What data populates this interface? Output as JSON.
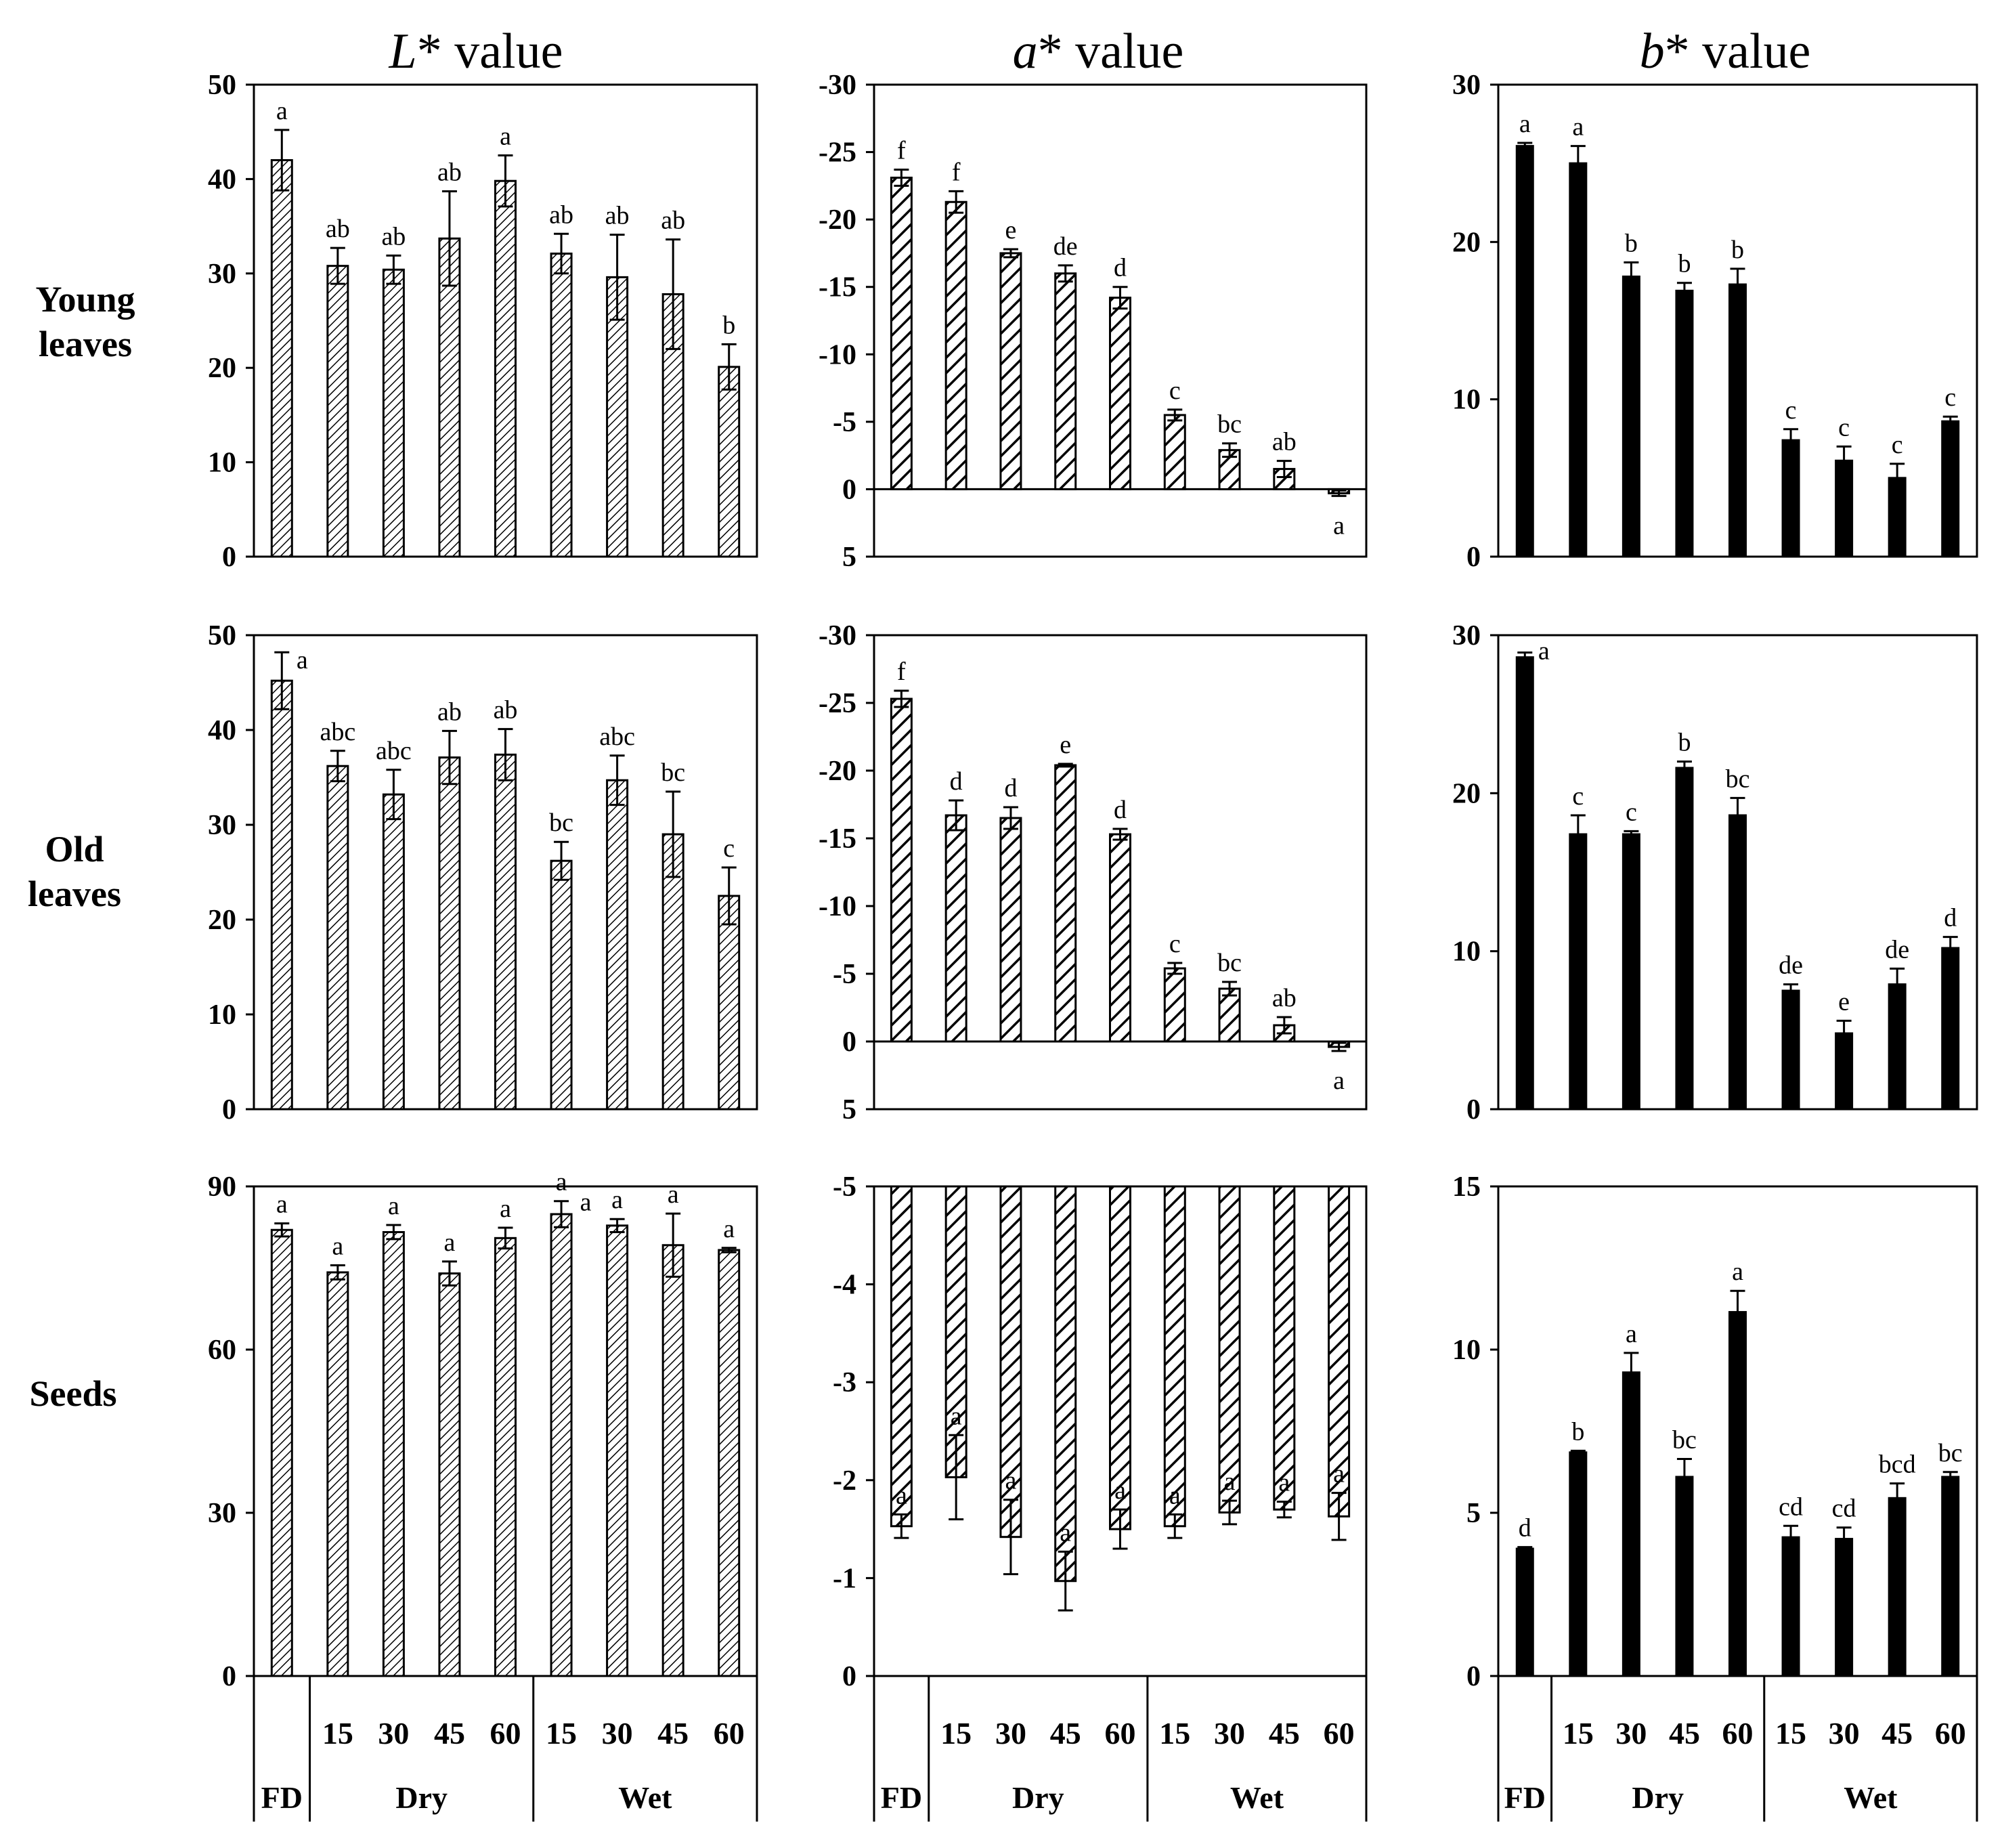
{
  "figure": {
    "col_titles": [
      {
        "italic": "L",
        "rest": "* value"
      },
      {
        "italic": "a",
        "rest": "* value"
      },
      {
        "italic": "b",
        "rest": "* value"
      }
    ],
    "row_labels": [
      [
        "Young",
        "leaves"
      ],
      [
        "Old",
        "leaves"
      ],
      [
        "Seeds"
      ]
    ],
    "x_axis": {
      "fd_label": "FD",
      "groups": [
        {
          "name": "Dry",
          "days": [
            "15",
            "30",
            "45",
            "60"
          ]
        },
        {
          "name": "Wet",
          "days": [
            "15",
            "30",
            "45",
            "60"
          ]
        }
      ]
    },
    "colors": {
      "bar_solid": "#000000",
      "bar_outline": "#000000",
      "background": "#ffffff"
    }
  },
  "chart_data": [
    {
      "type": "bar",
      "row": 0,
      "col": 0,
      "title": "L* value",
      "row_label": "Young leaves",
      "categories": [
        "FD",
        "Dry 15",
        "Dry 30",
        "Dry 45",
        "Dry 60",
        "Wet 15",
        "Wet 30",
        "Wet 45",
        "Wet 60"
      ],
      "values": [
        42,
        30.8,
        30.4,
        33.7,
        39.8,
        32.1,
        29.6,
        27.8,
        20.1
      ],
      "errors": [
        3.2,
        1.9,
        1.5,
        5,
        2.7,
        2.1,
        4.5,
        5.8,
        2.4
      ],
      "letters": [
        "a",
        "ab",
        "ab",
        "ab",
        "a",
        "ab",
        "ab",
        "ab",
        "b"
      ],
      "ylim": [
        0,
        50
      ],
      "yticks": [
        0,
        10,
        20,
        30,
        40,
        50
      ],
      "ytick_labels": [
        "0",
        "10",
        "20",
        "30",
        "40",
        "50"
      ],
      "inverted": false,
      "pattern": "dense",
      "zero_line": false
    },
    {
      "type": "bar",
      "row": 0,
      "col": 1,
      "title": "a* value",
      "row_label": "Young leaves",
      "categories": [
        "FD",
        "Dry 15",
        "Dry 30",
        "Dry 45",
        "Dry 60",
        "Wet 15",
        "Wet 30",
        "Wet 45",
        "Wet 60"
      ],
      "values": [
        -23.1,
        -21.3,
        -17.5,
        -16,
        -14.2,
        -5.5,
        -2.9,
        -1.5,
        0.3
      ],
      "errors": [
        0.6,
        0.8,
        0.3,
        0.6,
        0.8,
        0.4,
        0.5,
        0.6,
        0.2
      ],
      "letters": [
        "f",
        "f",
        "e",
        "de",
        "d",
        "c",
        "bc",
        "ab",
        "a"
      ],
      "ylim": [
        -30,
        5
      ],
      "yticks": [
        -30,
        -25,
        -20,
        -15,
        -10,
        -5,
        0,
        5
      ],
      "ytick_labels": [
        "-30",
        "-25",
        "-20",
        "-15",
        "-10",
        "-5",
        "0",
        "5"
      ],
      "inverted": true,
      "pattern": "diag",
      "zero_line": true
    },
    {
      "type": "bar",
      "row": 0,
      "col": 2,
      "title": "b* value",
      "row_label": "Young leaves",
      "categories": [
        "FD",
        "Dry 15",
        "Dry 30",
        "Dry 45",
        "Dry 60",
        "Wet 15",
        "Wet 30",
        "Wet 45",
        "Wet 60"
      ],
      "values": [
        26.1,
        25,
        17.8,
        16.9,
        17.3,
        7.4,
        6.1,
        5,
        8.6
      ],
      "errors": [
        0.2,
        1.1,
        0.9,
        0.5,
        1,
        0.7,
        0.9,
        0.9,
        0.3
      ],
      "letters": [
        "a",
        "a",
        "b",
        "b",
        "b",
        "c",
        "c",
        "c",
        "c"
      ],
      "ylim": [
        0,
        30
      ],
      "yticks": [
        0,
        10,
        20,
        30
      ],
      "ytick_labels": [
        "0",
        "10",
        "20",
        "30"
      ],
      "inverted": false,
      "pattern": "solid",
      "zero_line": false
    },
    {
      "type": "bar",
      "row": 1,
      "col": 0,
      "title": "L* value",
      "row_label": "Old leaves",
      "categories": [
        "FD",
        "Dry 15",
        "Dry 30",
        "Dry 45",
        "Dry 60",
        "Wet 15",
        "Wet 30",
        "Wet 45",
        "Wet 60"
      ],
      "values": [
        45.2,
        36.2,
        33.2,
        37.1,
        37.4,
        26.2,
        34.7,
        29,
        22.5
      ],
      "errors": [
        3,
        1.6,
        2.6,
        2.8,
        2.7,
        2,
        2.6,
        4.5,
        3
      ],
      "letters": [
        "a",
        "abc",
        "abc",
        "ab",
        "ab",
        "bc",
        "abc",
        "bc",
        "c"
      ],
      "ylim": [
        0,
        50
      ],
      "yticks": [
        0,
        10,
        20,
        30,
        40,
        50
      ],
      "ytick_labels": [
        "0",
        "10",
        "20",
        "30",
        "40",
        "50"
      ],
      "inverted": false,
      "pattern": "dense",
      "zero_line": false
    },
    {
      "type": "bar",
      "row": 1,
      "col": 1,
      "title": "a* value",
      "row_label": "Old leaves",
      "categories": [
        "FD",
        "Dry 15",
        "Dry 30",
        "Dry 45",
        "Dry 60",
        "Wet 15",
        "Wet 30",
        "Wet 45",
        "Wet 60"
      ],
      "values": [
        -25.3,
        -16.7,
        -16.5,
        -20.4,
        -15.3,
        -5.4,
        -3.9,
        -1.2,
        0.4
      ],
      "errors": [
        0.6,
        1.1,
        0.8,
        0.1,
        0.4,
        0.4,
        0.5,
        0.6,
        0.3
      ],
      "letters": [
        "f",
        "d",
        "d",
        "e",
        "d",
        "c",
        "bc",
        "ab",
        "a"
      ],
      "ylim": [
        -30,
        5
      ],
      "yticks": [
        -30,
        -25,
        -20,
        -15,
        -10,
        -5,
        0,
        5
      ],
      "ytick_labels": [
        "-30",
        "-25",
        "-20",
        "-15",
        "-10",
        "-5",
        "0",
        "5"
      ],
      "inverted": true,
      "pattern": "diag",
      "zero_line": true
    },
    {
      "type": "bar",
      "row": 1,
      "col": 2,
      "title": "b* value",
      "row_label": "Old leaves",
      "categories": [
        "FD",
        "Dry 15",
        "Dry 30",
        "Dry 45",
        "Dry 60",
        "Wet 15",
        "Wet 30",
        "Wet 45",
        "Wet 60"
      ],
      "values": [
        28.6,
        17.4,
        17.4,
        21.6,
        18.6,
        7.5,
        4.8,
        7.9,
        10.2
      ],
      "errors": [
        0.3,
        1.2,
        0.2,
        0.4,
        1.1,
        0.4,
        0.8,
        1,
        0.7
      ],
      "letters": [
        "a",
        "c",
        "c",
        "b",
        "bc",
        "de",
        "e",
        "de",
        "d"
      ],
      "ylim": [
        0,
        30
      ],
      "yticks": [
        0,
        10,
        20,
        30
      ],
      "ytick_labels": [
        "0",
        "10",
        "20",
        "30"
      ],
      "inverted": false,
      "pattern": "solid",
      "zero_line": false
    },
    {
      "type": "bar",
      "row": 2,
      "col": 0,
      "title": "L* value",
      "row_label": "Seeds",
      "categories": [
        "FD",
        "Dry 15",
        "Dry 30",
        "Dry 45",
        "Dry 60",
        "Wet 15",
        "Wet 30",
        "Wet 45",
        "Wet 60"
      ],
      "values": [
        82,
        74.2,
        81.6,
        74,
        80.5,
        84.9,
        82.8,
        79.2,
        78.3
      ],
      "errors": [
        1.2,
        1.3,
        1.3,
        2.2,
        1.9,
        2.4,
        1.2,
        5.8,
        0.4
      ],
      "letters": [
        "a",
        "a",
        "a",
        "a",
        "a",
        "a",
        "a",
        "a",
        "a"
      ],
      "extra_letters": [
        {
          "index": 5,
          "text": "a"
        }
      ],
      "ylim": [
        0,
        90
      ],
      "yticks": [
        0,
        30,
        60,
        90
      ],
      "ytick_labels": [
        "0",
        "30",
        "60",
        "90"
      ],
      "inverted": false,
      "pattern": "dense",
      "zero_line": false
    },
    {
      "type": "bar",
      "row": 2,
      "col": 1,
      "title": "a* value",
      "row_label": "Seeds",
      "categories": [
        "FD",
        "Dry 15",
        "Dry 30",
        "Dry 45",
        "Dry 60",
        "Wet 15",
        "Wet 30",
        "Wet 45",
        "Wet 60"
      ],
      "values": [
        -1.53,
        -2.03,
        -1.42,
        -0.97,
        -1.5,
        -1.53,
        -1.67,
        -1.7,
        -1.63
      ],
      "errors": [
        0.12,
        0.43,
        0.38,
        0.3,
        0.2,
        0.12,
        0.12,
        0.08,
        0.24
      ],
      "letters": [
        "a",
        "a",
        "a",
        "a",
        "a",
        "a",
        "a",
        "a",
        "a"
      ],
      "ylim": [
        -5,
        0
      ],
      "yticks": [
        -5,
        -4,
        -3,
        -2,
        -1,
        0
      ],
      "ytick_labels": [
        "-5",
        "-4",
        "-3",
        "-2",
        "-1",
        "0"
      ],
      "inverted": true,
      "pattern": "diag",
      "zero_line": false
    },
    {
      "type": "bar",
      "row": 2,
      "col": 2,
      "title": "b* value",
      "row_label": "Seeds",
      "categories": [
        "FD",
        "Dry 15",
        "Dry 30",
        "Dry 45",
        "Dry 60",
        "Wet 15",
        "Wet 30",
        "Wet 45",
        "Wet 60"
      ],
      "values": [
        3.9,
        6.85,
        9.3,
        6.1,
        11.15,
        4.25,
        4.2,
        5.45,
        6.1
      ],
      "errors": [
        0.05,
        0.05,
        0.6,
        0.55,
        0.65,
        0.35,
        0.35,
        0.45,
        0.15
      ],
      "letters": [
        "d",
        "b",
        "a",
        "bc",
        "a",
        "cd",
        "cd",
        "bcd",
        "bc"
      ],
      "ylim": [
        0,
        15
      ],
      "yticks": [
        0,
        5,
        10,
        15
      ],
      "ytick_labels": [
        "0",
        "5",
        "10",
        "15"
      ],
      "inverted": false,
      "pattern": "solid",
      "zero_line": false
    }
  ]
}
